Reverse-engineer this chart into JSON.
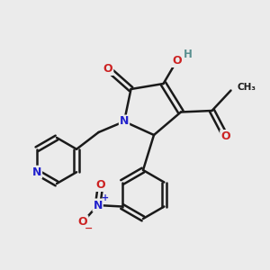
{
  "bg_color": "#ebebeb",
  "bond_color": "#1a1a1a",
  "N_color": "#2222cc",
  "O_color": "#cc2222",
  "H_color": "#5a9090",
  "line_width": 1.8,
  "fig_width": 3.0,
  "fig_height": 3.0,
  "dpi": 100,
  "xlim": [
    0,
    10
  ],
  "ylim": [
    0,
    10
  ]
}
